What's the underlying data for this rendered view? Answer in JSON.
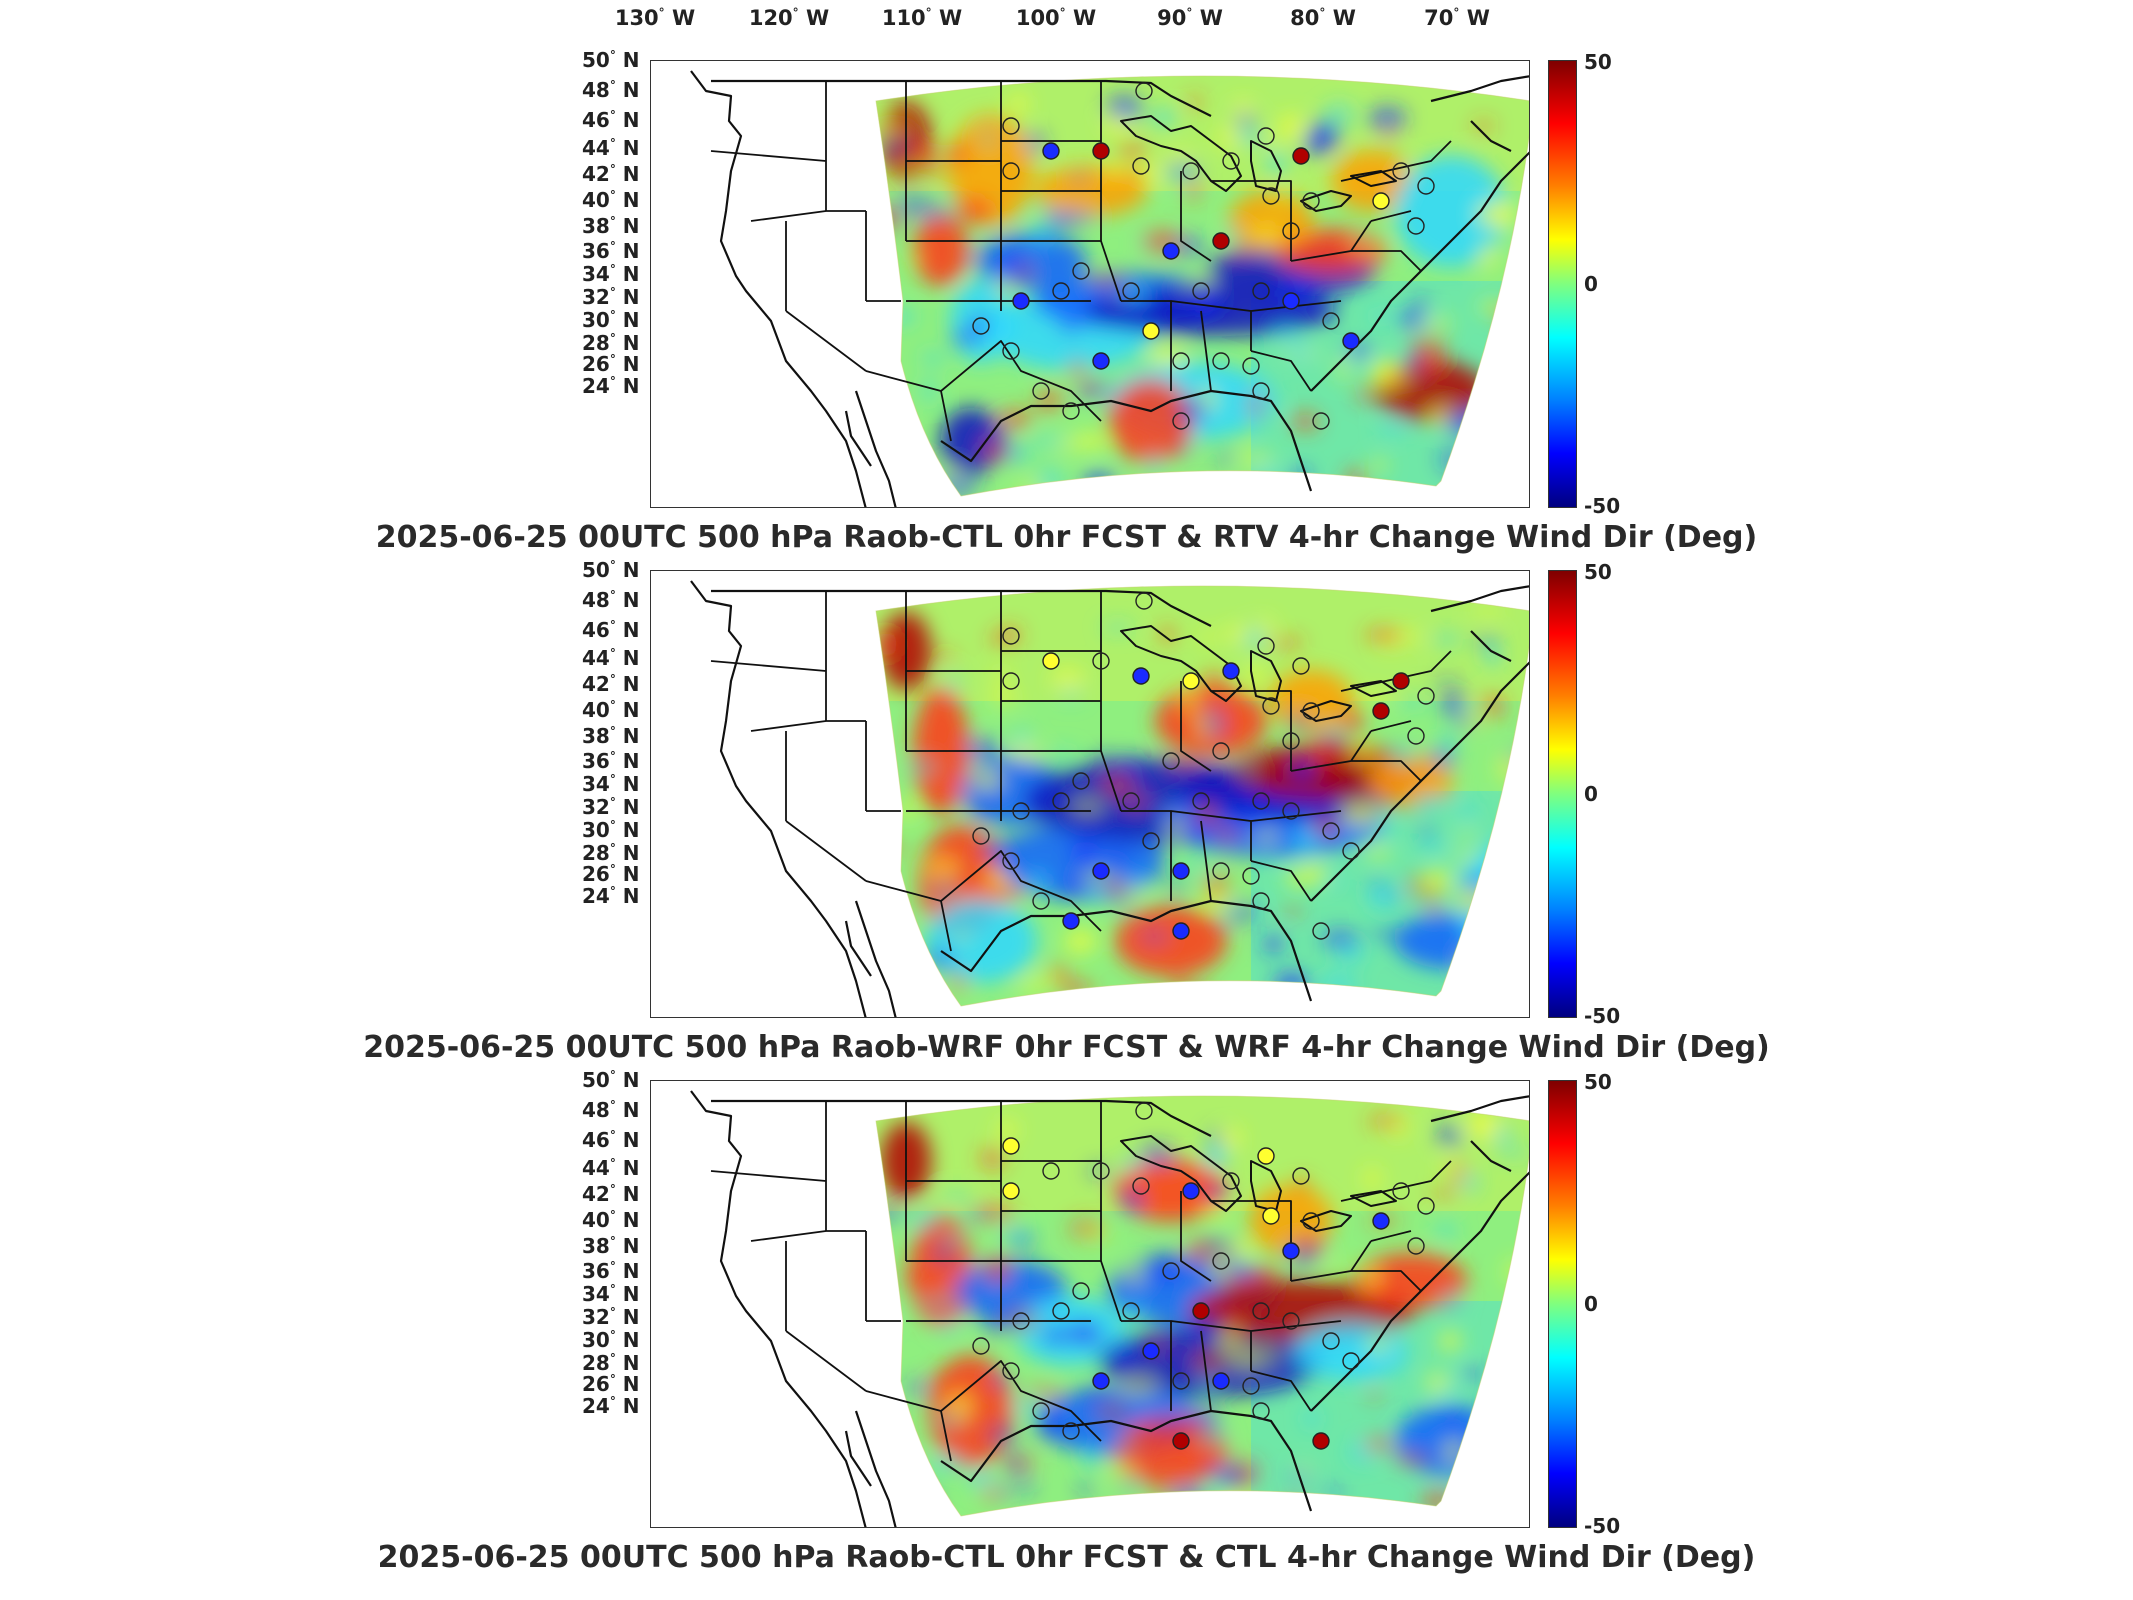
{
  "lon_labels": [
    {
      "deg": "130",
      "hem": "W"
    },
    {
      "deg": "120",
      "hem": "W"
    },
    {
      "deg": "110",
      "hem": "W"
    },
    {
      "deg": "100",
      "hem": "W"
    },
    {
      "deg": "90",
      "hem": "W"
    },
    {
      "deg": "80",
      "hem": "W"
    },
    {
      "deg": "70",
      "hem": "W"
    }
  ],
  "lat_labels": [
    {
      "deg": "50",
      "hem": "N"
    },
    {
      "deg": "48",
      "hem": "N"
    },
    {
      "deg": "46",
      "hem": "N"
    },
    {
      "deg": "44",
      "hem": "N"
    },
    {
      "deg": "42",
      "hem": "N"
    },
    {
      "deg": "40",
      "hem": "N"
    },
    {
      "deg": "38",
      "hem": "N"
    },
    {
      "deg": "36",
      "hem": "N"
    },
    {
      "deg": "34",
      "hem": "N"
    },
    {
      "deg": "32",
      "hem": "N"
    },
    {
      "deg": "30",
      "hem": "N"
    },
    {
      "deg": "28",
      "hem": "N"
    },
    {
      "deg": "26",
      "hem": "N"
    },
    {
      "deg": "24",
      "hem": "N"
    }
  ],
  "colorbar": {
    "max": "50",
    "mid": "0",
    "min": "-50"
  },
  "colormap": {
    "high": "#7f0000",
    "mid": "#7fff7f",
    "low": "#00007f"
  },
  "panels": [
    {
      "title": "2025-06-25 00UTC 500 hPa Raob-CTL 0hr FCST & RTV 4-hr Change Wind Dir (Deg)"
    },
    {
      "title": "2025-06-25 00UTC 500 hPa Raob-WRF 0hr FCST & WRF 4-hr Change Wind Dir (Deg)"
    },
    {
      "title": "2025-06-25 00UTC 500 hPa Raob-CTL 0hr FCST & CTL 4-hr Change Wind Dir (Deg)"
    }
  ]
}
